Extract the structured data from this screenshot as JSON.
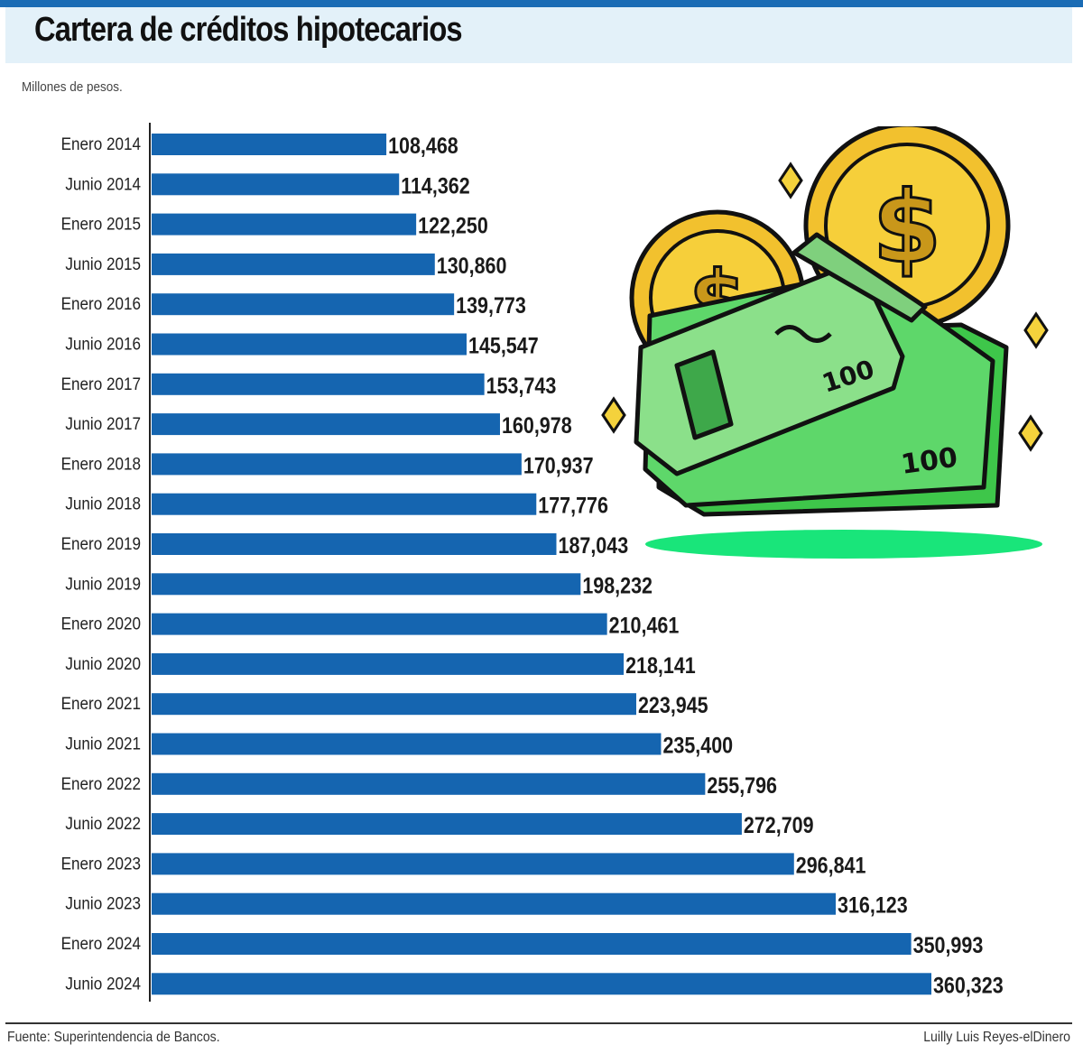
{
  "header": {
    "title": "Cartera de créditos hipotecarios",
    "subtitle": "Millones de pesos."
  },
  "footer": {
    "source": "Fuente: Superintendencia de Bancos.",
    "credit": "Luilly Luis Reyes-elDinero"
  },
  "colors": {
    "bar": "#1565b0",
    "accent": "#1a6cb5",
    "title_band": "#e3f1f9"
  },
  "illustration": {
    "icon": "money-cash-coins-icon"
  },
  "chart_data": {
    "type": "bar",
    "orientation": "horizontal",
    "categories": [
      "Enero 2014",
      "Junio 2014",
      "Enero 2015",
      "Junio 2015",
      "Enero 2016",
      "Junio 2016",
      "Enero 2017",
      "Junio 2017",
      "Enero 2018",
      "Junio 2018",
      "Enero 2019",
      "Junio 2019",
      "Enero 2020",
      "Junio 2020",
      "Enero 2021",
      "Junio 2021",
      "Enero 2022",
      "Junio 2022",
      "Enero 2023",
      "Junio 2023",
      "Enero 2024",
      "Junio 2024"
    ],
    "values": [
      108468,
      114362,
      122250,
      130860,
      139773,
      145547,
      153743,
      160978,
      170937,
      177776,
      187043,
      198232,
      210461,
      218141,
      223945,
      235400,
      255796,
      272709,
      296841,
      316123,
      350993,
      360323
    ],
    "value_labels": [
      "108,468",
      "114,362",
      "122,250",
      "130,860",
      "139,773",
      "145,547",
      "153,743",
      "160,978",
      "170,937",
      "177,776",
      "187,043",
      "198,232",
      "210,461",
      "218,141",
      "223,945",
      "235,400",
      "255,796",
      "272,709",
      "296,841",
      "316,123",
      "350,993",
      "360,323"
    ],
    "title": "Cartera de créditos hipotecarios",
    "xlabel": "",
    "ylabel": "",
    "xlim": [
      0,
      362000
    ],
    "grid": false,
    "legend": "none"
  }
}
